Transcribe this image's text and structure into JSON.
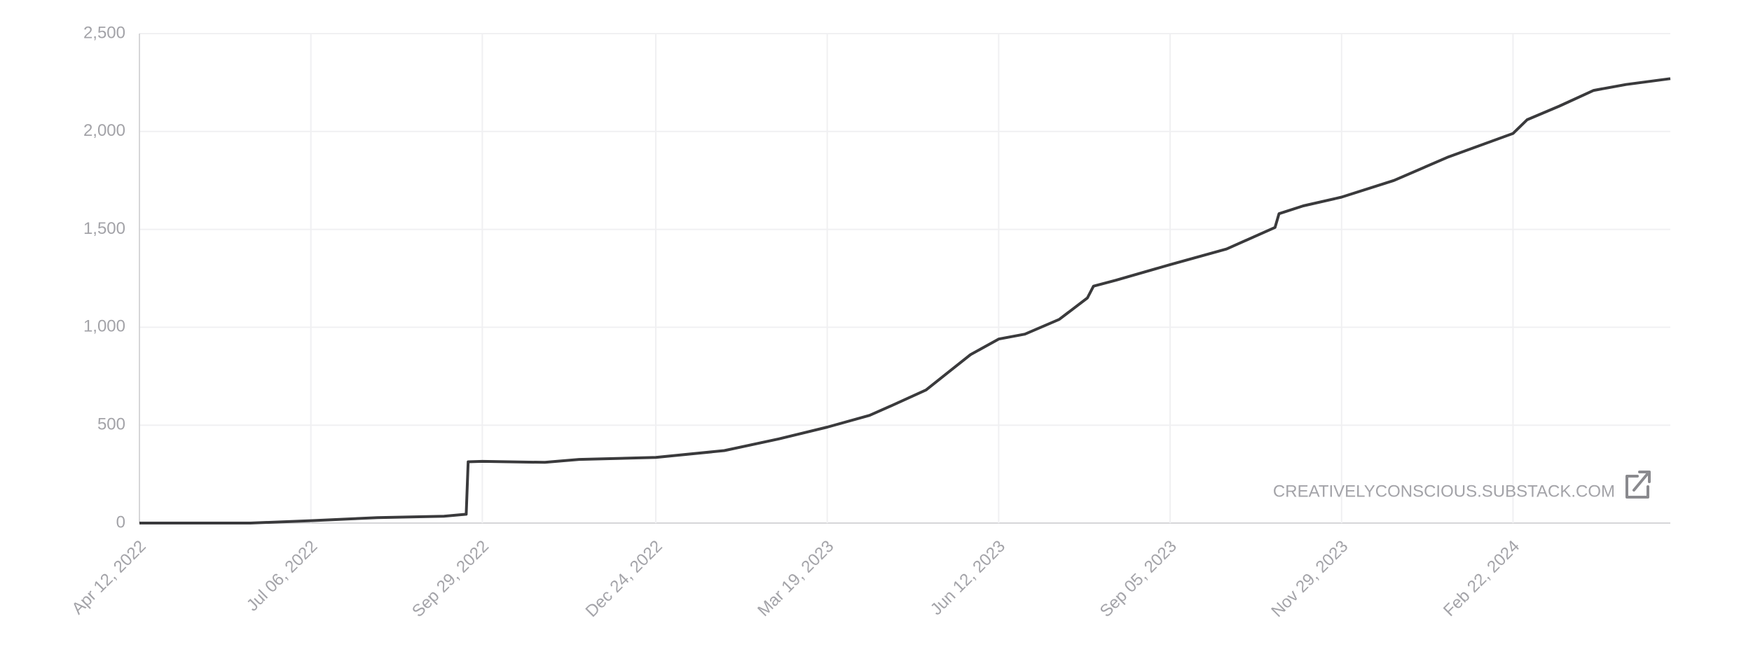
{
  "chart_data": {
    "type": "line",
    "x": [
      "2022-04-12",
      "2022-06-06",
      "2022-07-06",
      "2022-08-08",
      "2022-09-10",
      "2022-09-21",
      "2022-09-22",
      "2022-09-29",
      "2022-10-30",
      "2022-11-16",
      "2022-12-24",
      "2023-01-27",
      "2023-02-23",
      "2023-03-19",
      "2023-04-09",
      "2023-04-20",
      "2023-05-07",
      "2023-05-18",
      "2023-05-29",
      "2023-06-12",
      "2023-06-25",
      "2023-07-12",
      "2023-07-26",
      "2023-07-29",
      "2023-08-09",
      "2023-09-05",
      "2023-10-03",
      "2023-10-27",
      "2023-10-29",
      "2023-11-10",
      "2023-11-29",
      "2023-12-25",
      "2024-01-21",
      "2024-02-22",
      "2024-02-29",
      "2024-03-16",
      "2024-04-02",
      "2024-04-18",
      "2024-05-10"
    ],
    "values": [
      0,
      0,
      12,
      28,
      35,
      45,
      313,
      315,
      310,
      325,
      335,
      370,
      430,
      490,
      550,
      600,
      680,
      770,
      860,
      940,
      965,
      1040,
      1150,
      1210,
      1240,
      1320,
      1400,
      1510,
      1580,
      1620,
      1665,
      1750,
      1870,
      1990,
      2060,
      2130,
      2210,
      2240,
      2270
    ],
    "color": "#3a3a3c",
    "xlim": [
      "2022-04-12",
      "2024-05-10"
    ],
    "xticks": [
      {
        "value": "2022-04-12",
        "label": "Apr 12, 2022"
      },
      {
        "value": "2022-07-06",
        "label": "Jul 06, 2022"
      },
      {
        "value": "2022-09-29",
        "label": "Sep 29, 2022"
      },
      {
        "value": "2022-12-24",
        "label": "Dec 24, 2022"
      },
      {
        "value": "2023-03-19",
        "label": "Mar 19, 2023"
      },
      {
        "value": "2023-06-12",
        "label": "Jun 12, 2023"
      },
      {
        "value": "2023-09-05",
        "label": "Sep 05, 2023"
      },
      {
        "value": "2023-11-29",
        "label": "Nov 29, 2023"
      },
      {
        "value": "2024-02-22",
        "label": "Feb 22, 2024"
      }
    ],
    "ylim": [
      0,
      2500
    ],
    "yticks": [
      0,
      {
        "value": 500,
        "label": "500"
      },
      {
        "value": 1000,
        "label": "1,000"
      },
      {
        "value": 1500,
        "label": "1,500"
      },
      {
        "value": 2000,
        "label": "2,000"
      },
      {
        "value": 2500,
        "label": "2,500"
      }
    ],
    "grid": true,
    "watermark": "CREATIVELYCONSCIOUS.SUBSTACK.COM"
  }
}
